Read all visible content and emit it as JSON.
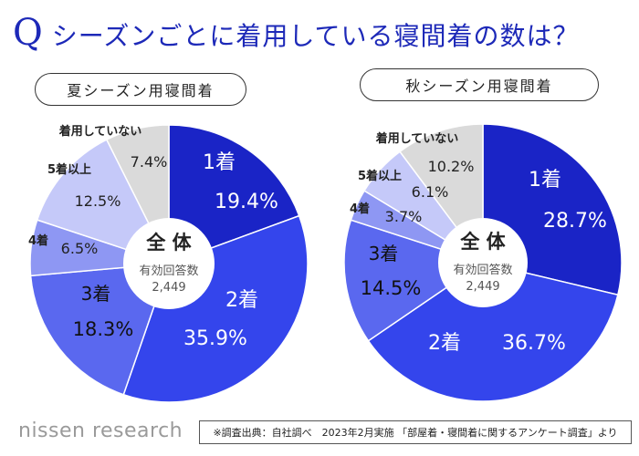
{
  "title": {
    "q": "Q",
    "text": "シーズンごとに着用している寝間着の数は？"
  },
  "chart_data": [
    {
      "type": "pie",
      "title": "夏シーズン用寝間着",
      "center": {
        "line1": "全 体",
        "line2": "有効回答数",
        "line3": "2,449"
      },
      "slices": [
        {
          "label": "1着",
          "value": 19.4,
          "value_text": "19.4%",
          "color": "#1a24c6"
        },
        {
          "label": "2着",
          "value": 35.9,
          "value_text": "35.9%",
          "color": "#3445ec"
        },
        {
          "label": "3着",
          "value": 18.3,
          "value_text": "18.3%",
          "color": "#5a68ef"
        },
        {
          "label": "4着",
          "value": 6.5,
          "value_text": "6.5%",
          "color": "#8e97f3"
        },
        {
          "label": "5着以上",
          "value": 12.5,
          "value_text": "12.5%",
          "color": "#c5c9f9"
        },
        {
          "label": "着用していない",
          "value": 7.4,
          "value_text": "7.4%",
          "color": "#dadada"
        }
      ]
    },
    {
      "type": "pie",
      "title": "秋シーズン用寝間着",
      "center": {
        "line1": "全 体",
        "line2": "有効回答数",
        "line3": "2,449"
      },
      "slices": [
        {
          "label": "1着",
          "value": 28.7,
          "value_text": "28.7%",
          "color": "#1a24c6"
        },
        {
          "label": "2着",
          "value": 36.7,
          "value_text": "36.7%",
          "color": "#3445ec"
        },
        {
          "label": "3着",
          "value": 14.5,
          "value_text": "14.5%",
          "color": "#5a68ef"
        },
        {
          "label": "4着",
          "value": 3.7,
          "value_text": "3.7%",
          "color": "#8e97f3"
        },
        {
          "label": "5着以上",
          "value": 6.1,
          "value_text": "6.1%",
          "color": "#c5c9f9"
        },
        {
          "label": "着用していない",
          "value": 10.2,
          "value_text": "10.2%",
          "color": "#dadada"
        }
      ]
    }
  ],
  "footer": {
    "logo": "nissen research",
    "note": "※調査出典：自社調べ　2023年2月実施 「部屋着・寝間着に関するアンケート調査」より"
  }
}
